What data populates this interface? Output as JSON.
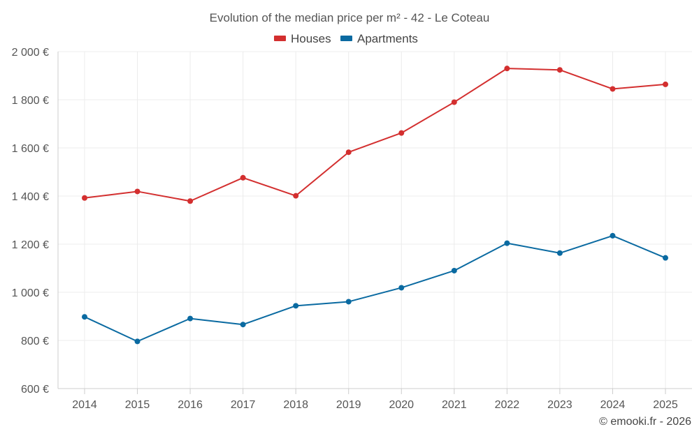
{
  "chart_data": {
    "type": "line",
    "title": "Evolution of the median price per m² - 42 - Le Coteau",
    "categories": [
      "2014",
      "2015",
      "2016",
      "2017",
      "2018",
      "2019",
      "2020",
      "2021",
      "2022",
      "2023",
      "2024",
      "2025"
    ],
    "y_tick_labels": [
      "600 €",
      "800 €",
      "1 000 €",
      "1 200 €",
      "1 400 €",
      "1 600 €",
      "1 800 €",
      "2 000 €"
    ],
    "y_ticks": [
      600,
      800,
      1000,
      1200,
      1400,
      1600,
      1800,
      2000
    ],
    "ylim": [
      600,
      2000
    ],
    "grid": true,
    "legend_position": "top-center",
    "series": [
      {
        "name": "Houses",
        "color": "#d32f2f",
        "values": [
          1392,
          1419,
          1379,
          1476,
          1401,
          1582,
          1662,
          1790,
          1930,
          1924,
          1845,
          1864
        ]
      },
      {
        "name": "Apartments",
        "color": "#0a6aa1",
        "values": [
          898,
          796,
          891,
          866,
          944,
          961,
          1019,
          1090,
          1204,
          1163,
          1235,
          1143
        ]
      }
    ],
    "credit": "© emooki.fr - 2026"
  }
}
